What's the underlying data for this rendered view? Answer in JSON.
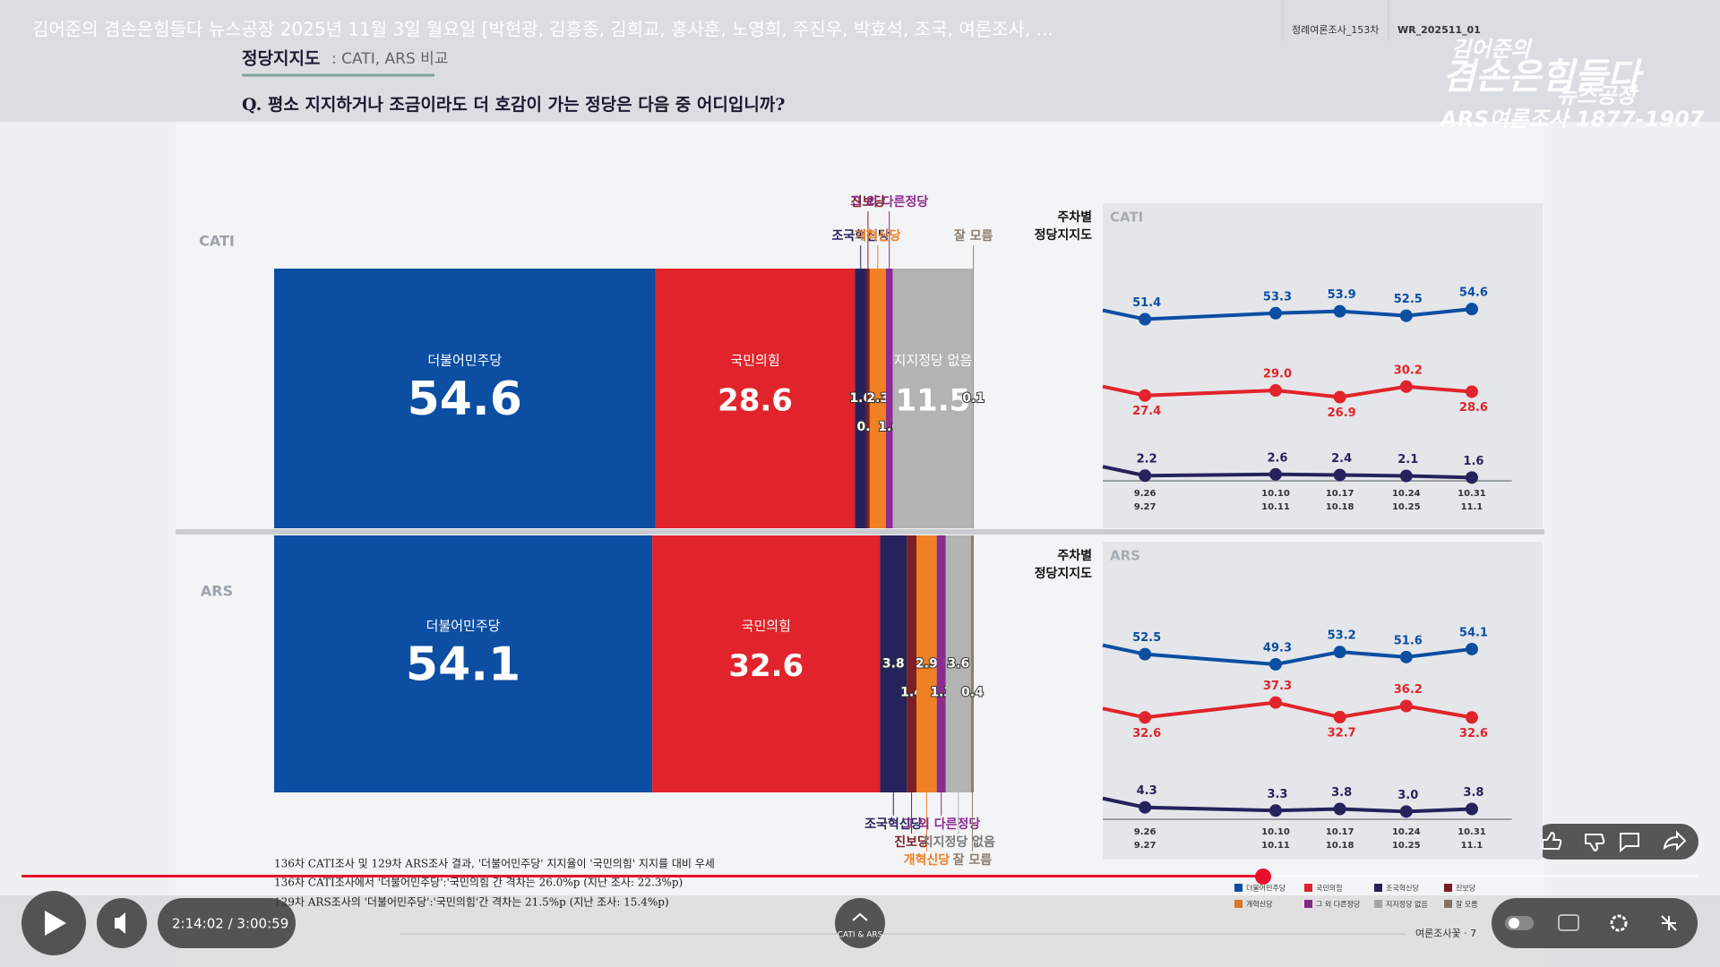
{
  "video": {
    "title": "김어준의 겸손은힘들다 뉴스공장 2025년 11월 3일 월요일 [박현광, 김흥종, 김희교, 홍사훈, 노영희, 주진우, 박효석, 조국, 여론조사, ...",
    "time": "2:14:02 / 3:00:59"
  },
  "slide": {
    "tags": [
      "정례여론조사_153차",
      "WR_202511_01"
    ],
    "logo": {
      "line1": "김어준의",
      "line2": "겸손은힘들다",
      "line3": "뉴스공장",
      "phone": "ARS여론조사 1877-1907"
    },
    "heading": "정당지지도",
    "subheading": ": CATI, ARS 비교",
    "question": "Q. 평소 지지하거나 조금이라도 더 호감이 가는 정당은 다음 중 어디입니까?",
    "notes": [
      "136차 CATI조사 및 129차 ARS조사 결과, '더불어민주당' 지지율이 '국민의힘' 지지를 대비 우세",
      "136차 CATI조사에서 '더불어민주당':'국민의힘 간 격차는 26.0%p (지난 조사: 22.3%p)",
      "129차 ARS조사의 '더불어민주당':'국민의힘'간 격차는 21.5%p (지난 조사: 15.4%p)"
    ],
    "footer": "여론조사꽃 · 7",
    "control_label": "CATI & ARS"
  },
  "chart_data": [
    {
      "type": "stacked_bar",
      "label": "CATI",
      "series": [
        {
          "name": "더불어민주당",
          "color": "#0b4ea2",
          "values": [
            54.6
          ]
        },
        {
          "name": "국민의힘",
          "color": "#e1242b",
          "values": [
            28.6
          ]
        },
        {
          "name": "조국혁신당",
          "color": "#25235c",
          "values": [
            1.6
          ]
        },
        {
          "name": "진보당",
          "color": "#7c1f24",
          "values": [
            0.5
          ]
        },
        {
          "name": "개혁신당",
          "color": "#f08024",
          "values": [
            2.3
          ]
        },
        {
          "name": "그 외 다른정당",
          "color": "#8c2c90",
          "values": [
            1.0
          ],
          "value_labels": [
            "1.0"
          ]
        },
        {
          "name": "지지정당 없음",
          "color": "#b3b3b3",
          "values": [
            11.5
          ]
        },
        {
          "name": "잘 모름",
          "color": "#8d7e70",
          "values": [
            0.1
          ]
        }
      ]
    },
    {
      "type": "stacked_bar",
      "label": "ARS",
      "series": [
        {
          "name": "더불어민주당",
          "color": "#0b4ea2",
          "values": [
            54.1
          ]
        },
        {
          "name": "국민의힘",
          "color": "#e1242b",
          "values": [
            32.6
          ]
        },
        {
          "name": "조국혁신당",
          "color": "#25235c",
          "values": [
            3.8
          ]
        },
        {
          "name": "진보당",
          "color": "#7c1f24",
          "values": [
            1.4
          ]
        },
        {
          "name": "개혁신당",
          "color": "#f08024",
          "values": [
            2.9
          ]
        },
        {
          "name": "그 외 다른정당",
          "color": "#8c2c90",
          "values": [
            1.3
          ]
        },
        {
          "name": "지지정당 없음",
          "color": "#b3b3b3",
          "values": [
            3.6
          ]
        },
        {
          "name": "잘 모름",
          "color": "#8d7e70",
          "values": [
            0.4
          ]
        }
      ]
    },
    {
      "type": "line",
      "title": "주차별 정당지지도",
      "label": "CATI",
      "categories": [
        [
          "9.26",
          "9.27"
        ],
        [
          "10.10",
          "10.11"
        ],
        [
          "10.17",
          "10.18"
        ],
        [
          "10.24",
          "10.25"
        ],
        [
          "10.31",
          "11.1"
        ]
      ],
      "series": [
        {
          "name": "더불어민주당",
          "color": "#0b4ea2",
          "values": [
            51.4,
            53.3,
            53.9,
            52.5,
            54.6
          ]
        },
        {
          "name": "국민의힘",
          "color": "#e1242b",
          "values": [
            27.4,
            29.0,
            26.9,
            30.2,
            28.6
          ],
          "value_labels": [
            "27.4",
            "29.0",
            "26.9",
            "30.2",
            "28.6"
          ]
        },
        {
          "name": "조국혁신당",
          "color": "#25235c",
          "values": [
            2.2,
            2.6,
            2.4,
            2.1,
            1.6
          ]
        }
      ]
    },
    {
      "type": "line",
      "title": "주차별 정당지지도",
      "label": "ARS",
      "categories": [
        [
          "9.26",
          "9.27"
        ],
        [
          "10.10",
          "10.11"
        ],
        [
          "10.17",
          "10.18"
        ],
        [
          "10.24",
          "10.25"
        ],
        [
          "10.31",
          "11.1"
        ]
      ],
      "series": [
        {
          "name": "더불어민주당",
          "color": "#0b4ea2",
          "values": [
            52.5,
            49.3,
            53.2,
            51.6,
            54.1
          ]
        },
        {
          "name": "국민의힘",
          "color": "#e1242b",
          "values": [
            32.6,
            37.3,
            32.7,
            36.2,
            32.6
          ]
        },
        {
          "name": "조국혁신당",
          "color": "#25235c",
          "values": [
            4.3,
            3.3,
            3.8,
            3.0,
            3.8
          ],
          "value_labels": [
            "4.3",
            "3.3",
            "3.8",
            "3.0",
            "3.8"
          ]
        }
      ]
    }
  ]
}
